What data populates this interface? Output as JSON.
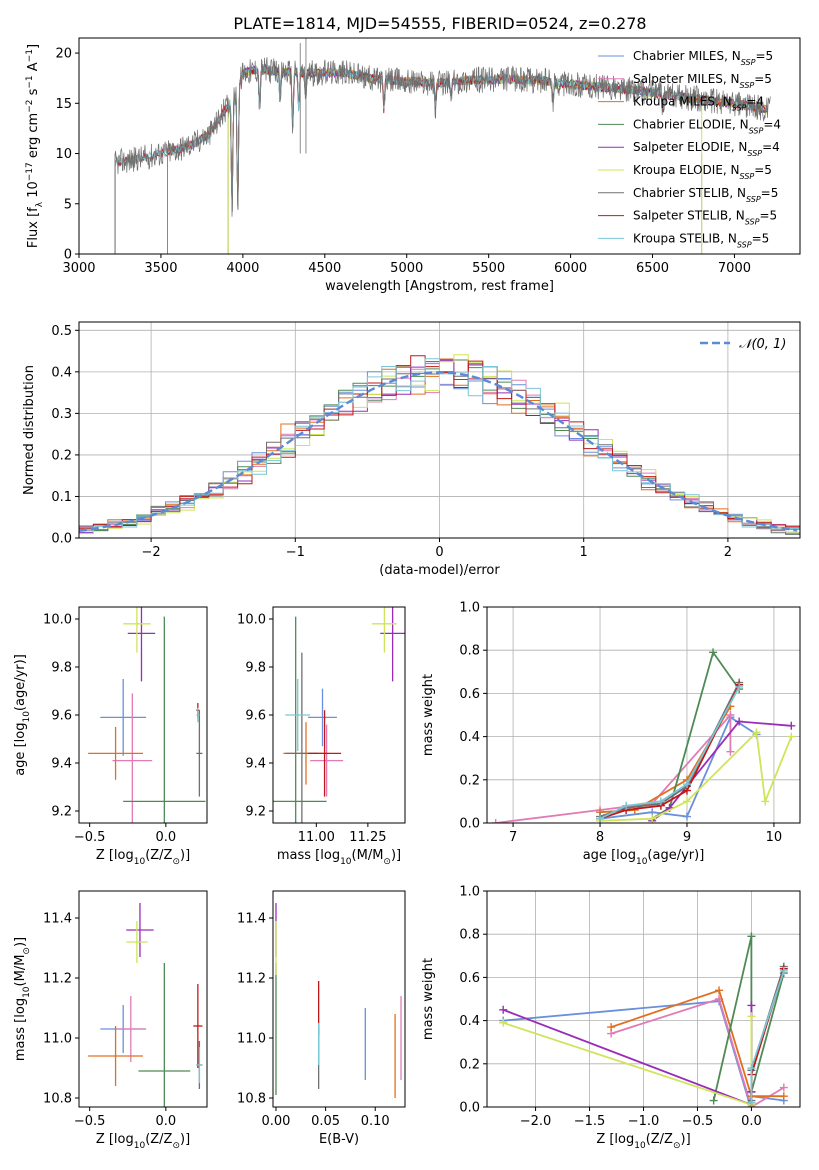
{
  "title": "PLATE=1814, MJD=54555, FIBERID=0524, z=0.278",
  "colors": {
    "chabrier_miles": "#6a8fdc",
    "salpeter_miles": "#e07bb6",
    "kroupa_miles": "#e07020",
    "chabrier_elodie": "#4f8a55",
    "salpeter_elodie": "#9a2cb8",
    "kroupa_elodie": "#cfe45a",
    "chabrier_stelib": "#707070",
    "salpeter_stelib": "#c01818",
    "kroupa_stelib": "#7ac6d6",
    "normal": "#5b8ad8"
  },
  "chart_data": [
    {
      "id": "spectrum",
      "type": "line",
      "xlabel": "wavelength [Angstrom, rest frame]",
      "ylabel": "Flux [f_λ 10^-17 erg cm^-2 s^-1 A^-1]",
      "xlim": [
        3000,
        7400
      ],
      "ylim": [
        0,
        21.5
      ],
      "xticks": [
        "3000",
        "3500",
        "4000",
        "4500",
        "5000",
        "5500",
        "6000",
        "6500",
        "7000"
      ],
      "yticks": [
        "0",
        "5",
        "10",
        "15",
        "20"
      ],
      "legend_position": "top-right",
      "legend": [
        {
          "key": "chabrier_miles",
          "text": "Chabrier MILES, N",
          "sub": "SSP",
          "tail": "=5"
        },
        {
          "key": "salpeter_miles",
          "text": "Salpeter MILES, N",
          "sub": "SSP",
          "tail": "=5"
        },
        {
          "key": "kroupa_miles",
          "text": "Kroupa MILES, N",
          "sub": "SSP",
          "tail": "=4"
        },
        {
          "key": "chabrier_elodie",
          "text": "Chabrier ELODIE, N",
          "sub": "SSP",
          "tail": "=4"
        },
        {
          "key": "salpeter_elodie",
          "text": "Salpeter ELODIE, N",
          "sub": "SSP",
          "tail": "=4"
        },
        {
          "key": "kroupa_elodie",
          "text": "Kroupa ELODIE, N",
          "sub": "SSP",
          "tail": "=5"
        },
        {
          "key": "chabrier_stelib",
          "text": "Chabrier STELIB, N",
          "sub": "SSP",
          "tail": "=5"
        },
        {
          "key": "salpeter_stelib",
          "text": "Salpeter STELIB, N",
          "sub": "SSP",
          "tail": "=5"
        },
        {
          "key": "kroupa_stelib",
          "text": "Kroupa STELIB, N",
          "sub": "SSP",
          "tail": "=5"
        }
      ],
      "continuum": [
        [
          3200,
          9.0
        ],
        [
          3400,
          9.6
        ],
        [
          3600,
          10.4
        ],
        [
          3700,
          11.0
        ],
        [
          3800,
          12.0
        ],
        [
          3900,
          14.6
        ],
        [
          3950,
          15.6
        ],
        [
          4000,
          18.0
        ],
        [
          4100,
          18.4
        ],
        [
          4200,
          18.2
        ],
        [
          4400,
          18.0
        ],
        [
          4600,
          18.1
        ],
        [
          4800,
          17.4
        ],
        [
          5000,
          17.2
        ],
        [
          5200,
          17.0
        ],
        [
          5400,
          17.3
        ],
        [
          5600,
          17.4
        ],
        [
          5800,
          17.3
        ],
        [
          6000,
          16.9
        ],
        [
          6200,
          16.6
        ],
        [
          6400,
          16.3
        ],
        [
          6600,
          15.8
        ],
        [
          6800,
          15.4
        ],
        [
          7000,
          15.0
        ],
        [
          7200,
          14.4
        ]
      ],
      "absorption_lines": [
        [
          3934,
          11.0
        ],
        [
          3969,
          12.0
        ],
        [
          4102,
          4.0
        ],
        [
          4227,
          3.0
        ],
        [
          4304,
          5.5
        ],
        [
          4341,
          3.5
        ],
        [
          4383,
          2.5
        ],
        [
          4861,
          3.0
        ],
        [
          5175,
          2.5
        ],
        [
          5270,
          1.5
        ],
        [
          5893,
          2.0
        ],
        [
          6563,
          1.5
        ]
      ],
      "series_start": {
        "chabrier_miles": 3540,
        "salpeter_miles": 3540,
        "kroupa_miles": 3540,
        "chabrier_elodie": 3910,
        "salpeter_elodie": 3910,
        "kroupa_elodie": 3910,
        "chabrier_stelib": 3220,
        "salpeter_stelib": 3220,
        "kroupa_stelib": 3220
      },
      "series_end": 7200,
      "data_start": 3220,
      "data_end": 7220,
      "spikes": [
        [
          3220,
          0
        ],
        [
          3910,
          0
        ],
        [
          4385,
          22
        ],
        [
          4350,
          21
        ],
        [
          6800,
          0
        ]
      ]
    },
    {
      "id": "residuals",
      "type": "area",
      "xlabel": "(data-model)/error",
      "ylabel": "Normed distribution",
      "xlim": [
        -2.5,
        2.5
      ],
      "ylim": [
        0,
        0.52
      ],
      "xticks": [
        "-2",
        "-1",
        "0",
        "1",
        "2"
      ],
      "yticks": [
        "0.0",
        "0.1",
        "0.2",
        "0.3",
        "0.4",
        "0.5"
      ],
      "grid": true,
      "legend_position": "top-right",
      "normal_label": "𝒩(0, 1)",
      "bin_width": 0.1,
      "series": [
        {
          "key": "chabrier_miles",
          "offset": -0.02,
          "seed": 1
        },
        {
          "key": "salpeter_miles",
          "offset": 0.01,
          "seed": 2
        },
        {
          "key": "kroupa_miles",
          "offset": -0.04,
          "seed": 3
        },
        {
          "key": "chabrier_elodie",
          "offset": 0.0,
          "seed": 4
        },
        {
          "key": "salpeter_elodie",
          "offset": 0.03,
          "seed": 5
        },
        {
          "key": "kroupa_elodie",
          "offset": 0.05,
          "seed": 6
        },
        {
          "key": "chabrier_stelib",
          "offset": -0.01,
          "seed": 7
        },
        {
          "key": "salpeter_stelib",
          "offset": 0.02,
          "seed": 8
        },
        {
          "key": "kroupa_stelib",
          "offset": 0.0,
          "seed": 9
        }
      ]
    },
    {
      "id": "age_vs_Z",
      "type": "scatter",
      "xlabel": "Z [log10(Z/Z⊙)]",
      "ylabel": "age [log10(age/yr)]",
      "xlim": [
        -0.57,
        0.27
      ],
      "ylim": [
        9.15,
        10.05
      ],
      "xticks": [
        "-0.5",
        "0.0"
      ],
      "yticks": [
        "9.2",
        "9.4",
        "9.6",
        "9.8",
        "10.0"
      ],
      "points": [
        {
          "key": "chabrier_miles",
          "x": -0.28,
          "xerr": 0.15,
          "y": 9.59,
          "yerr": 0.16
        },
        {
          "key": "salpeter_miles",
          "x": -0.22,
          "xerr": 0.13,
          "y": 9.41,
          "yerr": 0.28
        },
        {
          "key": "kroupa_miles",
          "x": -0.33,
          "xerr": 0.18,
          "y": 9.44,
          "yerr": 0.11
        },
        {
          "key": "chabrier_elodie",
          "x": -0.01,
          "xerr": 0.27,
          "y": 9.24,
          "yerr": 0.77
        },
        {
          "key": "salpeter_elodie",
          "x": -0.16,
          "xerr": 0.09,
          "y": 9.94,
          "yerr": 0.2
        },
        {
          "key": "kroupa_elodie",
          "x": -0.19,
          "xerr": 0.09,
          "y": 9.98,
          "yerr": 0.12
        },
        {
          "key": "chabrier_stelib",
          "x": 0.22,
          "xerr": 0.02,
          "y": 9.44,
          "yerr": 0.18
        },
        {
          "key": "salpeter_stelib",
          "x": 0.21,
          "xerr": 0.01,
          "y": 9.62,
          "yerr": 0.03
        },
        {
          "key": "kroupa_stelib",
          "x": 0.21,
          "xerr": 0.01,
          "y": 9.6,
          "yerr": 0.03
        }
      ]
    },
    {
      "id": "age_vs_mass",
      "type": "scatter",
      "xlabel": "mass [log10(M/M⊙)]",
      "ylabel": "",
      "xlim": [
        10.79,
        11.43
      ],
      "ylim": [
        9.15,
        10.05
      ],
      "xticks": [
        "11.00",
        "11.25"
      ],
      "yticks": [
        "9.2",
        "9.4",
        "9.6",
        "9.8",
        "10.0"
      ],
      "points": [
        {
          "key": "chabrier_miles",
          "x": 11.03,
          "xerr": 0.07,
          "y": 9.59,
          "yerr": 0.12
        },
        {
          "key": "salpeter_miles",
          "x": 11.05,
          "xerr": 0.08,
          "y": 9.41,
          "yerr": 0.15
        },
        {
          "key": "kroupa_miles",
          "x": 10.95,
          "xerr": 0.11,
          "y": 9.44,
          "yerr": 0.13
        },
        {
          "key": "chabrier_elodie",
          "x": 10.9,
          "xerr": 0.15,
          "y": 9.24,
          "yerr": 0.77
        },
        {
          "key": "salpeter_elodie",
          "x": 11.37,
          "xerr": 0.06,
          "y": 9.94,
          "yerr": 0.2
        },
        {
          "key": "kroupa_elodie",
          "x": 11.33,
          "xerr": 0.06,
          "y": 9.98,
          "yerr": 0.12
        },
        {
          "key": "chabrier_stelib",
          "x": 10.93,
          "xerr": 0.08,
          "y": 9.44,
          "yerr": 0.42
        },
        {
          "key": "salpeter_stelib",
          "x": 11.04,
          "xerr": 0.08,
          "y": 9.44,
          "yerr": 0.18
        },
        {
          "key": "kroupa_stelib",
          "x": 10.91,
          "xerr": 0.06,
          "y": 9.6,
          "yerr": 0.15
        }
      ]
    },
    {
      "id": "weight_vs_age",
      "type": "line",
      "xlabel": "age [log10(age/yr)]",
      "ylabel": "mass weight",
      "xlim": [
        6.7,
        10.3
      ],
      "ylim": [
        0,
        1.0
      ],
      "xticks": [
        "7",
        "8",
        "9",
        "10"
      ],
      "yticks": [
        "0.0",
        "0.2",
        "0.4",
        "0.6",
        "0.8",
        "1.0"
      ],
      "grid": true,
      "series": [
        {
          "key": "chabrier_miles",
          "x": [
            8.0,
            8.6,
            9.0,
            9.5,
            9.8
          ],
          "y": [
            0.02,
            0.05,
            0.03,
            0.49,
            0.41
          ]
        },
        {
          "key": "salpeter_miles",
          "x": [
            6.8,
            8.0,
            8.6,
            9.5,
            9.5
          ],
          "y": [
            0.0,
            0.06,
            0.09,
            0.5,
            0.33
          ]
        },
        {
          "key": "kroupa_miles",
          "x": [
            8.0,
            8.4,
            9.0,
            9.5
          ],
          "y": [
            0.05,
            0.06,
            0.2,
            0.54
          ]
        },
        {
          "key": "chabrier_elodie",
          "x": [
            8.6,
            8.8,
            9.3,
            9.6
          ],
          "y": [
            0.02,
            0.07,
            0.79,
            0.62
          ]
        },
        {
          "key": "salpeter_elodie",
          "x": [
            8.6,
            8.8,
            9.6,
            10.2
          ],
          "y": [
            0.01,
            0.07,
            0.47,
            0.45
          ]
        },
        {
          "key": "kroupa_elodie",
          "x": [
            8.0,
            8.6,
            9.0,
            9.8,
            9.9,
            10.2
          ],
          "y": [
            0.01,
            0.02,
            0.1,
            0.42,
            0.1,
            0.4
          ]
        },
        {
          "key": "chabrier_stelib",
          "x": [
            8.0,
            8.3,
            8.7,
            9.0,
            9.6
          ],
          "y": [
            0.03,
            0.07,
            0.09,
            0.17,
            0.65
          ]
        },
        {
          "key": "salpeter_stelib",
          "x": [
            8.0,
            8.3,
            8.7,
            9.0,
            9.6
          ],
          "y": [
            0.02,
            0.06,
            0.08,
            0.15,
            0.64
          ]
        },
        {
          "key": "kroupa_stelib",
          "x": [
            8.0,
            8.3,
            8.7,
            9.0,
            9.6
          ],
          "y": [
            0.02,
            0.08,
            0.1,
            0.18,
            0.63
          ]
        }
      ]
    },
    {
      "id": "mass_vs_Z",
      "type": "scatter",
      "xlabel": "Z [log10(Z/Z⊙)]",
      "ylabel": "mass [log10(M/M⊙)]",
      "xlim": [
        -0.57,
        0.27
      ],
      "ylim": [
        10.77,
        11.49
      ],
      "xticks": [
        "-0.5",
        "0.0"
      ],
      "yticks": [
        "10.8",
        "11.0",
        "11.2",
        "11.4"
      ],
      "points": [
        {
          "key": "chabrier_miles",
          "x": -0.28,
          "xerr": 0.15,
          "y": 11.03,
          "yerr": 0.08
        },
        {
          "key": "salpeter_miles",
          "x": -0.23,
          "xerr": 0.1,
          "y": 11.03,
          "yerr": 0.11
        },
        {
          "key": "kroupa_miles",
          "x": -0.33,
          "xerr": 0.18,
          "y": 10.94,
          "yerr": 0.1
        },
        {
          "key": "chabrier_elodie",
          "x": -0.01,
          "xerr": 0.17,
          "y": 10.89,
          "yerr": 0.36
        },
        {
          "key": "salpeter_elodie",
          "x": -0.17,
          "xerr": 0.09,
          "y": 11.36,
          "yerr": 0.09
        },
        {
          "key": "kroupa_elodie",
          "x": -0.19,
          "xerr": 0.07,
          "y": 11.32,
          "yerr": 0.07
        },
        {
          "key": "chabrier_stelib",
          "x": 0.22,
          "xerr": 0.02,
          "y": 10.91,
          "yerr": 0.08
        },
        {
          "key": "salpeter_stelib",
          "x": 0.21,
          "xerr": 0.03,
          "y": 11.04,
          "yerr": 0.14
        },
        {
          "key": "kroupa_stelib",
          "x": 0.22,
          "xerr": 0.02,
          "y": 10.91,
          "yerr": 0.06
        }
      ]
    },
    {
      "id": "mass_vs_EBV",
      "type": "scatter",
      "xlabel": "E(B-V)",
      "ylabel": "",
      "xlim": [
        -0.003,
        0.13
      ],
      "ylim": [
        10.77,
        11.49
      ],
      "xticks": [
        "0.00",
        "0.05",
        "0.10"
      ],
      "yticks": [
        "10.8",
        "11.0",
        "11.2",
        "11.4"
      ],
      "points": [
        {
          "key": "chabrier_miles",
          "x": 0.09,
          "xerr": 0,
          "y": 10.98,
          "yerr": 0.12
        },
        {
          "key": "salpeter_miles",
          "x": 0.126,
          "xerr": 0,
          "y": 11.0,
          "yerr": 0.14
        },
        {
          "key": "kroupa_miles",
          "x": 0.12,
          "xerr": 0,
          "y": 10.94,
          "yerr": 0.14
        },
        {
          "key": "chabrier_elodie",
          "x": 0.0,
          "xerr": 0,
          "y": 11.03,
          "yerr": 0.22
        },
        {
          "key": "salpeter_elodie",
          "x": 0.0,
          "xerr": 0,
          "y": 11.36,
          "yerr": 0.09
        },
        {
          "key": "kroupa_elodie",
          "x": 0.0,
          "xerr": 0,
          "y": 11.3,
          "yerr": 0.09
        },
        {
          "key": "chabrier_stelib",
          "x": 0.043,
          "xerr": 0,
          "y": 10.93,
          "yerr": 0.1
        },
        {
          "key": "salpeter_stelib",
          "x": 0.043,
          "xerr": 0,
          "y": 11.1,
          "yerr": 0.09
        },
        {
          "key": "kroupa_stelib",
          "x": 0.043,
          "xerr": 0,
          "y": 10.98,
          "yerr": 0.07
        }
      ]
    },
    {
      "id": "weight_vs_Z",
      "type": "line",
      "xlabel": "Z [log10(Z/Z⊙)]",
      "ylabel": "mass weight",
      "xlim": [
        -2.45,
        0.45
      ],
      "ylim": [
        0,
        1.0
      ],
      "xticks": [
        "-2.0",
        "-1.5",
        "-1.0",
        "-0.5",
        "0.0"
      ],
      "yticks": [
        "0.0",
        "0.2",
        "0.4",
        "0.6",
        "0.8",
        "1.0"
      ],
      "grid": true,
      "series": [
        {
          "key": "chabrier_miles",
          "x": [
            -2.3,
            -0.3,
            -0.02,
            0.0,
            0.3
          ],
          "y": [
            0.4,
            0.49,
            0.02,
            0.05,
            0.03
          ]
        },
        {
          "key": "salpeter_miles",
          "x": [
            -1.3,
            -0.3,
            0.0,
            0.3
          ],
          "y": [
            0.34,
            0.5,
            0.0,
            0.09
          ]
        },
        {
          "key": "kroupa_miles",
          "x": [
            -1.3,
            -0.3,
            0.0,
            0.3
          ],
          "y": [
            0.37,
            0.54,
            0.05,
            0.05
          ]
        },
        {
          "key": "chabrier_elodie",
          "x": [
            -0.35,
            0.0,
            0.0,
            0.3
          ],
          "y": [
            0.03,
            0.79,
            0.07,
            0.62
          ]
        },
        {
          "key": "salpeter_elodie",
          "x": [
            -2.3,
            0.0,
            0.0,
            0.0
          ],
          "y": [
            0.45,
            0.01,
            0.07,
            0.47
          ]
        },
        {
          "key": "kroupa_elodie",
          "x": [
            -2.3,
            0.0,
            0.0,
            0.0
          ],
          "y": [
            0.39,
            0.01,
            0.02,
            0.42
          ]
        },
        {
          "key": "chabrier_stelib",
          "x": [
            0.0,
            0.0,
            0.3
          ],
          "y": [
            0.03,
            0.17,
            0.65
          ]
        },
        {
          "key": "salpeter_stelib",
          "x": [
            0.0,
            0.0,
            0.3
          ],
          "y": [
            0.02,
            0.15,
            0.64
          ]
        },
        {
          "key": "kroupa_stelib",
          "x": [
            0.0,
            0.0,
            0.3
          ],
          "y": [
            0.02,
            0.18,
            0.63
          ]
        }
      ]
    }
  ]
}
